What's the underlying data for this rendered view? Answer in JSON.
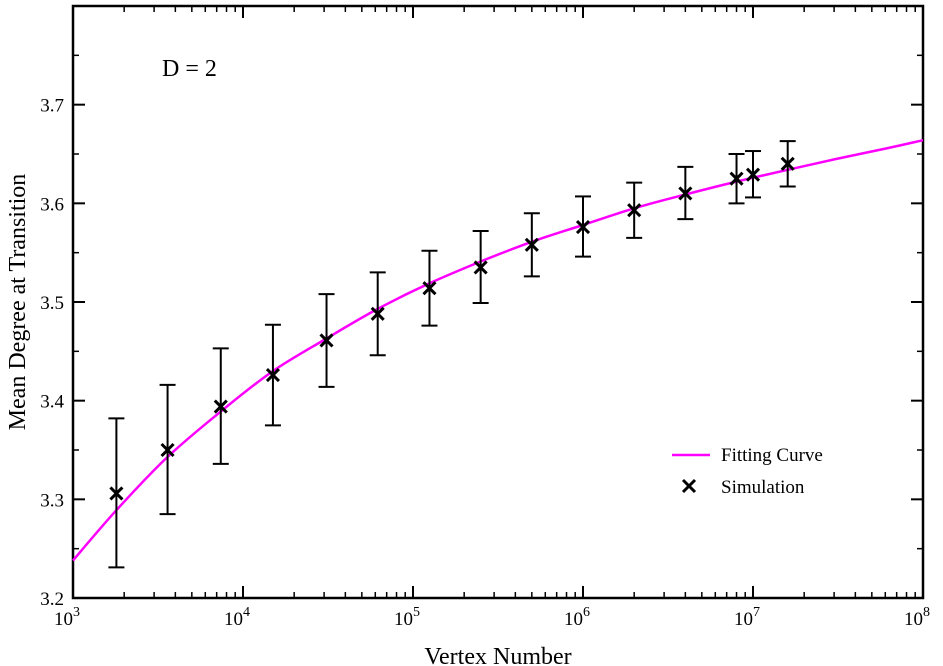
{
  "chart_data": {
    "type": "scatter",
    "xlabel": "Vertex Number",
    "ylabel": "Mean Degree at Transition",
    "annotation": "D = 2",
    "x_scale": "log",
    "xlim": [
      1000,
      100000000
    ],
    "ylim": [
      3.2,
      3.8
    ],
    "x_ticks": [
      {
        "value": 1000,
        "base": "10",
        "exp": "3"
      },
      {
        "value": 10000,
        "base": "10",
        "exp": "4"
      },
      {
        "value": 100000,
        "base": "10",
        "exp": "5"
      },
      {
        "value": 1000000,
        "base": "10",
        "exp": "6"
      },
      {
        "value": 10000000,
        "base": "10",
        "exp": "7"
      },
      {
        "value": 100000000,
        "base": "10",
        "exp": "8"
      }
    ],
    "y_ticks": [
      {
        "value": 3.2,
        "label": "3.2"
      },
      {
        "value": 3.3,
        "label": "3.3"
      },
      {
        "value": 3.4,
        "label": "3.4"
      },
      {
        "value": 3.5,
        "label": "3.5"
      },
      {
        "value": 3.6,
        "label": "3.6"
      },
      {
        "value": 3.7,
        "label": "3.7"
      }
    ],
    "grid": false,
    "legend_position": "bottom-right",
    "series": [
      {
        "name": "Simulation",
        "kind": "scatter-errorbar",
        "marker": "x",
        "color": "#000000",
        "points": [
          {
            "x": 1800,
            "y": 3.306,
            "err_low": 3.231,
            "err_high": 3.382
          },
          {
            "x": 3600,
            "y": 3.35,
            "err_low": 3.285,
            "err_high": 3.416
          },
          {
            "x": 7400,
            "y": 3.394,
            "err_low": 3.336,
            "err_high": 3.453
          },
          {
            "x": 15000,
            "y": 3.426,
            "err_low": 3.375,
            "err_high": 3.477
          },
          {
            "x": 31000,
            "y": 3.461,
            "err_low": 3.414,
            "err_high": 3.508
          },
          {
            "x": 62000,
            "y": 3.488,
            "err_low": 3.446,
            "err_high": 3.53
          },
          {
            "x": 125000,
            "y": 3.514,
            "err_low": 3.476,
            "err_high": 3.552
          },
          {
            "x": 250000,
            "y": 3.535,
            "err_low": 3.499,
            "err_high": 3.572
          },
          {
            "x": 500000,
            "y": 3.558,
            "err_low": 3.526,
            "err_high": 3.59
          },
          {
            "x": 1000000,
            "y": 3.576,
            "err_low": 3.546,
            "err_high": 3.607
          },
          {
            "x": 2000000,
            "y": 3.593,
            "err_low": 3.565,
            "err_high": 3.621
          },
          {
            "x": 4000000,
            "y": 3.61,
            "err_low": 3.584,
            "err_high": 3.637
          },
          {
            "x": 8000000,
            "y": 3.625,
            "err_low": 3.6,
            "err_high": 3.65
          },
          {
            "x": 10000000,
            "y": 3.629,
            "err_low": 3.606,
            "err_high": 3.653
          },
          {
            "x": 16000000,
            "y": 3.64,
            "err_low": 3.617,
            "err_high": 3.663
          }
        ]
      },
      {
        "name": "Fitting Curve",
        "kind": "line",
        "color": "#ff00ff",
        "points": [
          {
            "x": 1000,
            "y": 3.238
          },
          {
            "x": 1800,
            "y": 3.289
          },
          {
            "x": 3600,
            "y": 3.343
          },
          {
            "x": 7400,
            "y": 3.389
          },
          {
            "x": 15000,
            "y": 3.43
          },
          {
            "x": 31000,
            "y": 3.463
          },
          {
            "x": 62000,
            "y": 3.493
          },
          {
            "x": 125000,
            "y": 3.519
          },
          {
            "x": 250000,
            "y": 3.541
          },
          {
            "x": 500000,
            "y": 3.561
          },
          {
            "x": 1000000,
            "y": 3.578
          },
          {
            "x": 2000000,
            "y": 3.595
          },
          {
            "x": 4000000,
            "y": 3.609
          },
          {
            "x": 8000000,
            "y": 3.622
          },
          {
            "x": 16000000,
            "y": 3.634
          },
          {
            "x": 31000000,
            "y": 3.645
          },
          {
            "x": 62000000,
            "y": 3.656
          },
          {
            "x": 100000000,
            "y": 3.664
          }
        ]
      }
    ]
  }
}
